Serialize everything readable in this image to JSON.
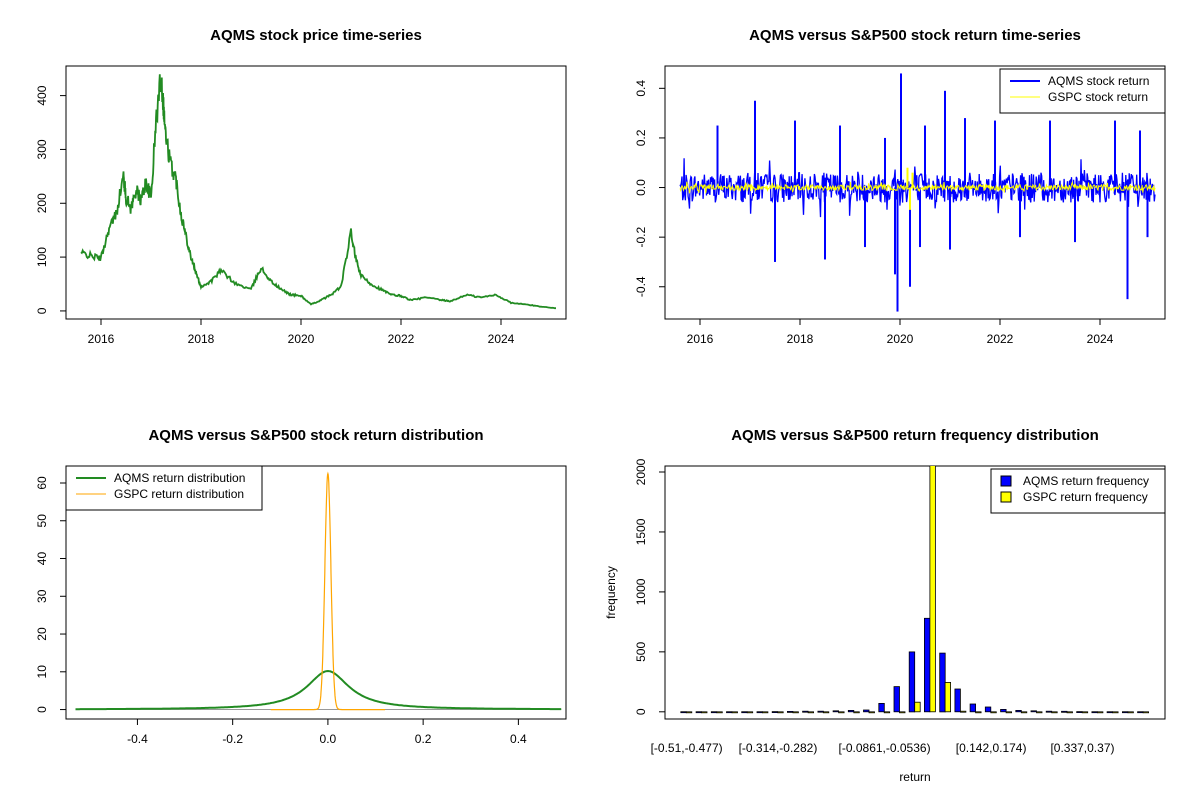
{
  "colors": {
    "green": "#228B22",
    "blue": "#0000FF",
    "yellow": "#FFFF00",
    "orange": "#FFA500",
    "black": "#000000"
  },
  "chart_data": [
    {
      "id": "price",
      "type": "line",
      "title": "AQMS stock price time-series",
      "xlim": [
        2015.3,
        2025.3
      ],
      "ylim": [
        -15,
        455
      ],
      "x_ticks": [
        2016,
        2018,
        2020,
        2022,
        2024
      ],
      "x_tick_labels": [
        "2016",
        "2018",
        "2020",
        "2022",
        "2024"
      ],
      "y_ticks": [
        0,
        100,
        200,
        300,
        400
      ],
      "y_tick_labels": [
        "0",
        "100",
        "200",
        "300",
        "400"
      ],
      "series": [
        {
          "color": "#228B22",
          "x": [
            2015.6,
            2015.8,
            2016.0,
            2016.15,
            2016.3,
            2016.45,
            2016.5,
            2016.6,
            2016.7,
            2016.8,
            2016.9,
            2017.0,
            2017.1,
            2017.2,
            2017.25,
            2017.3,
            2017.4,
            2017.5,
            2017.6,
            2017.7,
            2017.8,
            2017.9,
            2018.0,
            2018.2,
            2018.4,
            2018.7,
            2019.0,
            2019.2,
            2019.4,
            2019.6,
            2019.8,
            2020.0,
            2020.2,
            2020.4,
            2020.6,
            2020.8,
            2021.0,
            2021.1,
            2021.2,
            2021.4,
            2021.6,
            2021.8,
            2022.0,
            2022.2,
            2022.5,
            2022.8,
            2023.0,
            2023.3,
            2023.6,
            2023.9,
            2024.2,
            2024.5,
            2024.8,
            2025.1
          ],
          "y": [
            108,
            102,
            98,
            150,
            180,
            250,
            210,
            190,
            225,
            205,
            240,
            210,
            350,
            440,
            380,
            320,
            270,
            245,
            180,
            140,
            100,
            70,
            45,
            55,
            75,
            50,
            40,
            80,
            55,
            40,
            30,
            28,
            12,
            20,
            30,
            45,
            145,
            95,
            65,
            50,
            40,
            30,
            28,
            20,
            25,
            20,
            18,
            30,
            25,
            30,
            15,
            12,
            8,
            5
          ]
        }
      ]
    },
    {
      "id": "returns",
      "type": "line",
      "title": "AQMS versus S&P500 stock return time-series",
      "xlim": [
        2015.3,
        2025.3
      ],
      "ylim": [
        -0.53,
        0.49
      ],
      "x_ticks": [
        2016,
        2018,
        2020,
        2022,
        2024
      ],
      "x_tick_labels": [
        "2016",
        "2018",
        "2020",
        "2022",
        "2024"
      ],
      "y_ticks": [
        -0.4,
        -0.2,
        0.0,
        0.2,
        0.4
      ],
      "y_tick_labels": [
        "-0.4",
        "-0.2",
        "0.0",
        "0.2",
        "0.4"
      ],
      "legend_position": "top-right",
      "series": [
        {
          "name": "AQMS stock return",
          "color": "#0000FF",
          "amplitude": 0.06,
          "spikes_x": [
            2016.35,
            2017.1,
            2017.5,
            2017.9,
            2018.5,
            2018.8,
            2019.3,
            2019.7,
            2019.9,
            2019.95,
            2020.02,
            2020.2,
            2020.4,
            2020.5,
            2020.9,
            2021.0,
            2021.3,
            2021.9,
            2022.4,
            2023.0,
            2023.5,
            2024.3,
            2024.55,
            2024.8,
            2024.95
          ],
          "spikes_y": [
            0.25,
            0.35,
            -0.3,
            0.27,
            -0.29,
            0.25,
            -0.24,
            0.2,
            -0.35,
            -0.5,
            0.46,
            -0.4,
            -0.24,
            0.25,
            0.39,
            -0.25,
            0.28,
            0.27,
            -0.2,
            0.27,
            -0.22,
            0.27,
            -0.45,
            0.23,
            -0.2
          ]
        },
        {
          "name": "GSPC stock return",
          "color": "#FFFF00",
          "amplitude": 0.012,
          "spikes_x": [
            2020.15,
            2020.2,
            2020.25
          ],
          "spikes_y": [
            0.08,
            -0.09,
            0.06
          ]
        }
      ]
    },
    {
      "id": "density",
      "type": "line",
      "title": "AQMS versus S&P500 stock return distribution",
      "xlim": [
        -0.55,
        0.5
      ],
      "ylim": [
        -2.5,
        64.5
      ],
      "x_ticks": [
        -0.4,
        -0.2,
        0.0,
        0.2,
        0.4
      ],
      "x_tick_labels": [
        "-0.4",
        "-0.2",
        "0.0",
        "0.2",
        "0.4"
      ],
      "y_ticks": [
        0,
        10,
        20,
        30,
        40,
        50,
        60
      ],
      "y_tick_labels": [
        "0",
        "10",
        "20",
        "30",
        "40",
        "50",
        "60"
      ],
      "legend_position": "top-left",
      "series": [
        {
          "name": "AQMS return distribution",
          "color": "#228B22",
          "x_range": [
            -0.53,
            0.49
          ],
          "peak": 10.2,
          "sigma": 0.04
        },
        {
          "name": "GSPC return distribution",
          "color": "#FFA500",
          "x_range": [
            -0.12,
            0.12
          ],
          "peak": 62.5,
          "sigma": 0.0063
        }
      ]
    },
    {
      "id": "hist",
      "type": "bar",
      "title": "AQMS versus S&P500 return frequency distribution",
      "xlabel": "return",
      "ylabel": "frequency",
      "ylim": [
        -60,
        2050
      ],
      "y_ticks": [
        0,
        500,
        1000,
        1500,
        2000
      ],
      "y_tick_labels": [
        "0",
        "500",
        "1000",
        "1500",
        "2000"
      ],
      "x_tick_labels": [
        "[-0.51,-0.477)",
        "[-0.314,-0.282)",
        "[-0.0861,-0.0536)",
        "[0.142,0.174)",
        "[0.337,0.37)"
      ],
      "x_tick_bins": [
        0,
        6,
        13,
        20,
        26
      ],
      "bin_count": 31,
      "legend_position": "top-right",
      "series": [
        {
          "name": "AQMS return frequency",
          "color": "#0000FF",
          "values": [
            1,
            1,
            1,
            1,
            1,
            1,
            2,
            3,
            5,
            5,
            8,
            12,
            15,
            70,
            210,
            500,
            780,
            490,
            190,
            65,
            40,
            20,
            12,
            8,
            5,
            4,
            2,
            1,
            1,
            1,
            1
          ]
        },
        {
          "name": "GSPC return frequency",
          "color": "#FFFF00",
          "values": [
            0,
            0,
            0,
            0,
            0,
            0,
            0,
            0,
            0,
            0,
            0,
            0,
            0,
            0,
            0,
            80,
            2080,
            245,
            5,
            0,
            0,
            0,
            0,
            0,
            0,
            0,
            0,
            0,
            0,
            0,
            0
          ]
        }
      ]
    }
  ]
}
